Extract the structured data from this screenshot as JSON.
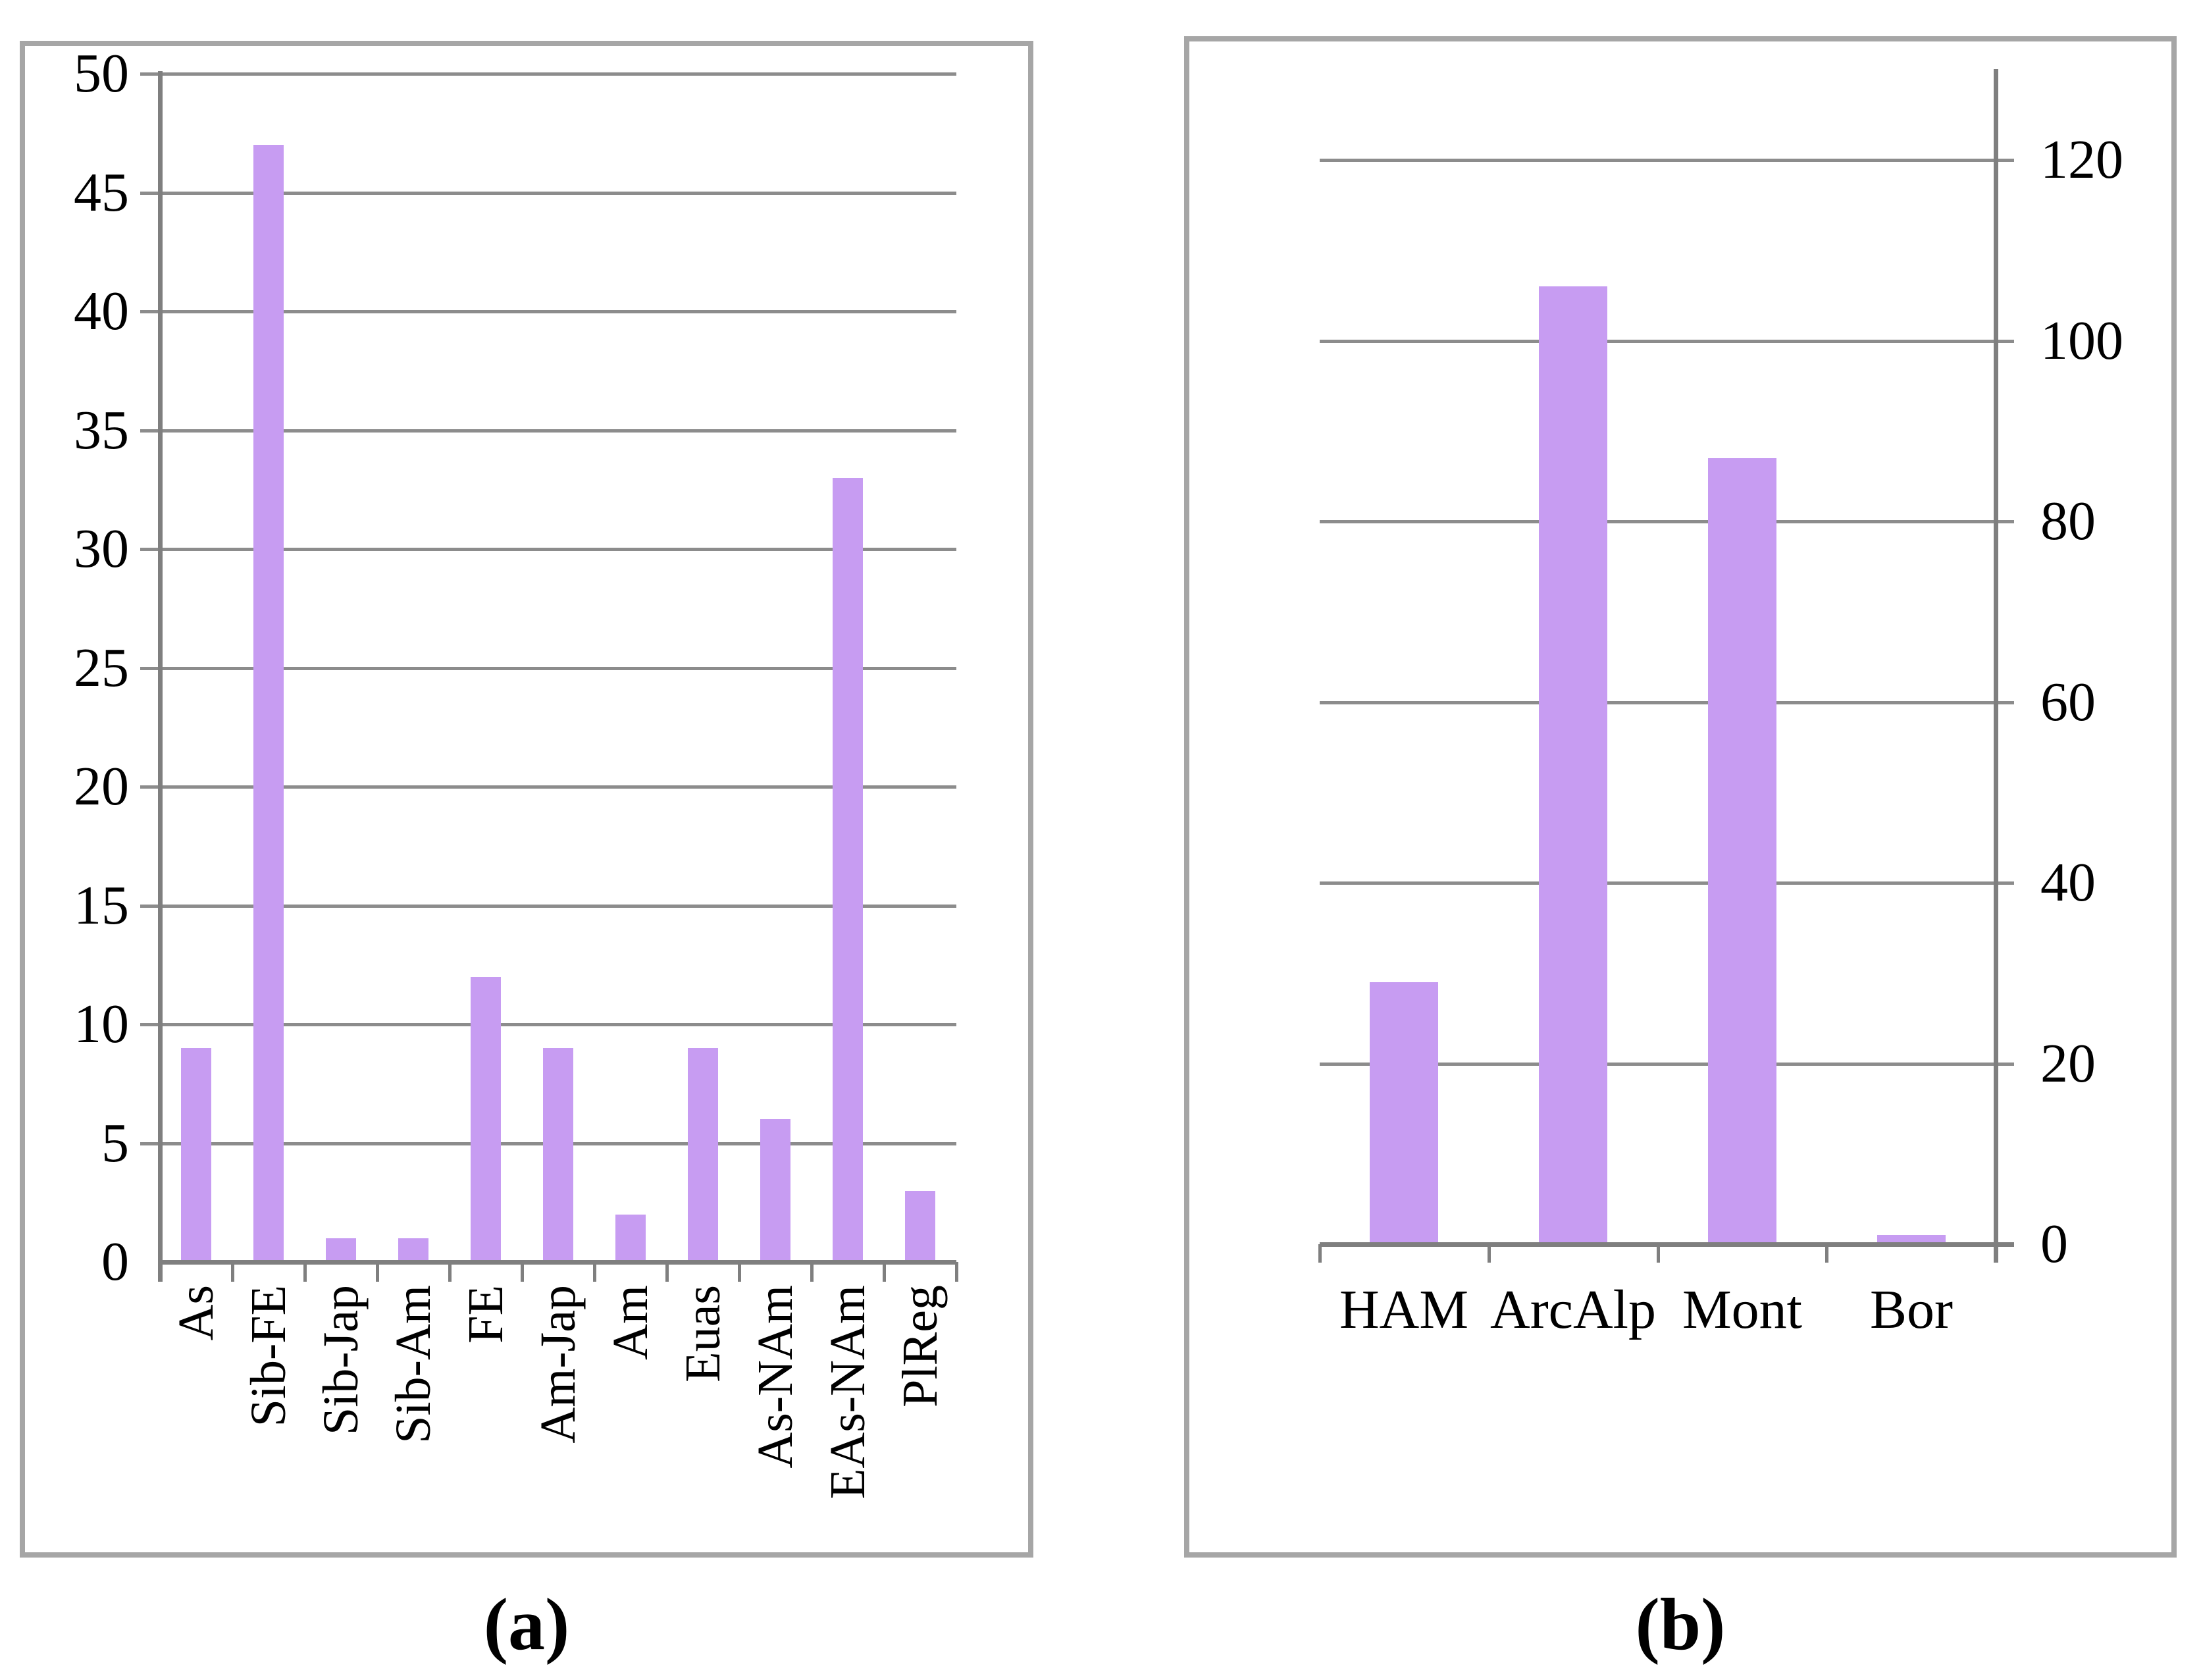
{
  "figure": {
    "background_color": "#ffffff",
    "text_color": "#000000"
  },
  "colors": {
    "bar_fill": "#c79cf2",
    "gridline": "#8c8c8c",
    "axis_line": "#7f7f7f",
    "box_border": "#a6a6a6"
  },
  "chart_data": [
    {
      "id": "a",
      "type": "bar",
      "title": "",
      "xlabel": "",
      "ylabel": "",
      "categories": [
        "As",
        "Sib-FE",
        "Sib-Jap",
        "Sib-Am",
        "FE",
        "Am-Jap",
        "Am",
        "Euas",
        "As-NAm",
        "EAs-NAm",
        "PlReg"
      ],
      "values": [
        9,
        47,
        1,
        1,
        12,
        9,
        2,
        9,
        6,
        33,
        3
      ],
      "ylim": [
        0,
        50
      ],
      "yticks": [
        0,
        5,
        10,
        15,
        20,
        25,
        30,
        35,
        40,
        45,
        50
      ],
      "ytick_labels": [
        "0",
        "5",
        "10",
        "15",
        "20",
        "25",
        "30",
        "35",
        "40",
        "45",
        "50"
      ],
      "yaxis_side": "left",
      "grid": true,
      "legend": "none",
      "category_label_rotation": -90,
      "caption": "(a)"
    },
    {
      "id": "b",
      "type": "bar",
      "title": "",
      "xlabel": "",
      "ylabel": "",
      "categories": [
        "HAM",
        "ArcAlp",
        "Mont",
        "Bor"
      ],
      "values": [
        29,
        106,
        87,
        1
      ],
      "ylim": [
        0,
        120
      ],
      "yticks": [
        0,
        20,
        40,
        60,
        80,
        100,
        120
      ],
      "ytick_labels": [
        "0",
        "20",
        "40",
        "60",
        "80",
        "100",
        "120"
      ],
      "yaxis_side": "right",
      "grid": true,
      "legend": "none",
      "category_label_rotation": 0,
      "caption": "(b)"
    }
  ]
}
